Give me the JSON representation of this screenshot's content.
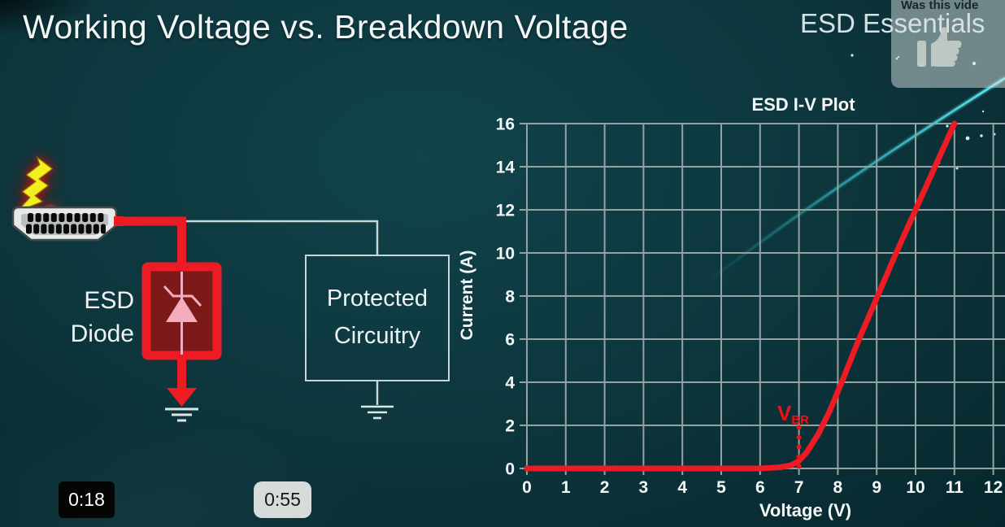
{
  "slide": {
    "title": "Working Voltage vs. Breakdown Voltage",
    "watermark": "ESD Essentials"
  },
  "like_prompt": {
    "text": "Was this vide",
    "icon": "thumbs-up-icon"
  },
  "timestamps": {
    "current": "0:18",
    "preview": "0:55"
  },
  "circuit": {
    "esd_diode_label": [
      "ESD",
      "Diode"
    ],
    "protected_label": [
      "Protected",
      "Circuitry"
    ]
  },
  "chart_data": {
    "type": "line",
    "title": "ESD I-V Plot",
    "xlabel": "Voltage (V)",
    "ylabel": "Current (A)",
    "xlim": [
      0,
      12.3
    ],
    "ylim": [
      0,
      16
    ],
    "x_ticks": [
      0,
      1,
      2,
      3,
      4,
      5,
      6,
      7,
      8,
      9,
      10,
      11,
      12
    ],
    "y_ticks": [
      0,
      2,
      4,
      6,
      8,
      10,
      12,
      14,
      16
    ],
    "grid": true,
    "legend_position": "none",
    "series": [
      {
        "name": "ESD diode breakdown I-V curve",
        "color": "#ed1b24",
        "x": [
          0,
          1,
          2,
          3,
          4,
          5,
          6,
          6.5,
          6.8,
          7,
          7.2,
          7.5,
          7.8,
          8.1,
          8.5,
          9,
          9.5,
          10,
          10.5,
          11
        ],
        "y": [
          0,
          0,
          0,
          0,
          0,
          0,
          0,
          0.05,
          0.15,
          0.35,
          0.75,
          1.6,
          2.7,
          4.0,
          5.8,
          7.9,
          10.0,
          12.0,
          14.0,
          16
        ]
      }
    ],
    "annotations": [
      {
        "type": "dotted-vline",
        "label_main": "V",
        "label_sub": "BR",
        "x": 7,
        "y_from": 0,
        "y_to": 1.9,
        "color": "#e8141c"
      }
    ]
  },
  "colors": {
    "background": "#0c343b",
    "accent_red": "#ed1b24",
    "grid_line": "#93a3a2",
    "swoosh": "#43dbe4",
    "diode_fill": "#7c1a1a",
    "diode_symbol": "#f2aebd"
  }
}
